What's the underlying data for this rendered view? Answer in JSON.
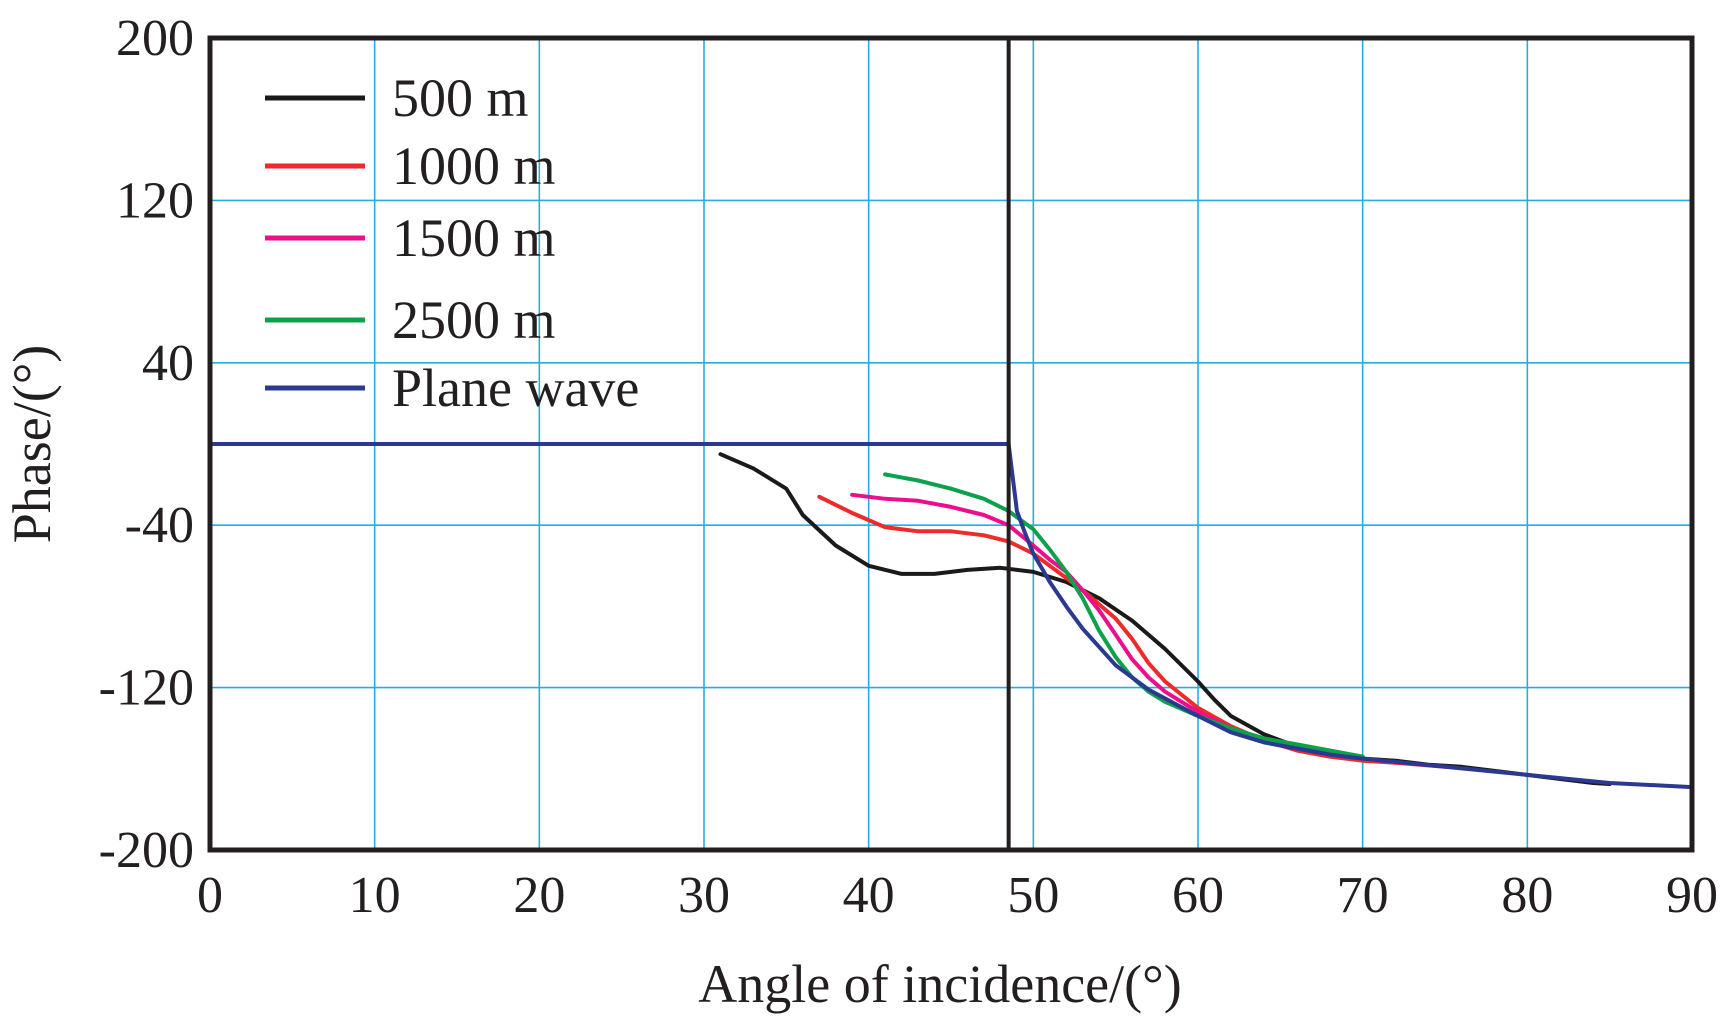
{
  "chart_data": {
    "type": "line",
    "title": "",
    "xlabel": "Angle of incidence/(°)",
    "ylabel": "Phase/(°)",
    "xlim": [
      0,
      90
    ],
    "ylim": [
      -200,
      200
    ],
    "xticks": [
      "0",
      "10",
      "20",
      "30",
      "40",
      "50",
      "60",
      "70",
      "80",
      "90"
    ],
    "yticks": [
      "200",
      "120",
      "40",
      "-40",
      "-120",
      "-200"
    ],
    "xtick_values": [
      0,
      10,
      20,
      30,
      40,
      50,
      60,
      70,
      80,
      90
    ],
    "ytick_values": [
      200,
      120,
      40,
      -40,
      -120,
      -200
    ],
    "grid": true,
    "legend_position": "top-left",
    "critical_angle": 48.5,
    "series": [
      {
        "name": "500 m",
        "color": "#1a1a1a",
        "points": [
          [
            31,
            -5
          ],
          [
            33,
            -12
          ],
          [
            35,
            -22
          ],
          [
            36,
            -35
          ],
          [
            38,
            -50
          ],
          [
            40,
            -60
          ],
          [
            42,
            -64
          ],
          [
            44,
            -64
          ],
          [
            46,
            -62
          ],
          [
            48,
            -61
          ],
          [
            50,
            -63
          ],
          [
            52,
            -68
          ],
          [
            54,
            -76
          ],
          [
            56,
            -87
          ],
          [
            58,
            -101
          ],
          [
            60,
            -117
          ],
          [
            61,
            -126
          ],
          [
            62,
            -134
          ],
          [
            64,
            -143
          ],
          [
            66,
            -149
          ],
          [
            68,
            -152
          ],
          [
            70,
            -155
          ],
          [
            72,
            -156
          ],
          [
            74,
            -158
          ],
          [
            76,
            -159
          ],
          [
            78,
            -161
          ],
          [
            80,
            -163
          ],
          [
            82,
            -165
          ],
          [
            84,
            -167
          ],
          [
            85,
            -167.5
          ]
        ]
      },
      {
        "name": "1000 m",
        "color": "#ee2a2a",
        "points": [
          [
            37,
            -26
          ],
          [
            39,
            -34
          ],
          [
            41,
            -41
          ],
          [
            43,
            -43
          ],
          [
            45,
            -43
          ],
          [
            47,
            -45
          ],
          [
            48.5,
            -48
          ],
          [
            50,
            -54
          ],
          [
            51,
            -60
          ],
          [
            52,
            -66
          ],
          [
            53,
            -72
          ],
          [
            55,
            -86
          ],
          [
            56,
            -96
          ],
          [
            57,
            -108
          ],
          [
            58,
            -117
          ],
          [
            60,
            -130
          ],
          [
            62,
            -139
          ],
          [
            64,
            -146
          ],
          [
            66,
            -151
          ],
          [
            68,
            -154
          ],
          [
            70,
            -156
          ],
          [
            72,
            -157
          ],
          [
            75,
            -159
          ]
        ]
      },
      {
        "name": "1500 m",
        "color": "#ec0e8c",
        "points": [
          [
            39,
            -25
          ],
          [
            41,
            -27
          ],
          [
            43,
            -28
          ],
          [
            45,
            -31
          ],
          [
            47,
            -35
          ],
          [
            48.5,
            -40
          ],
          [
            50,
            -50
          ],
          [
            51,
            -57
          ],
          [
            52,
            -63
          ],
          [
            53,
            -72
          ],
          [
            54,
            -82
          ],
          [
            55,
            -94
          ],
          [
            56,
            -106
          ],
          [
            57,
            -115
          ],
          [
            58,
            -122
          ],
          [
            60,
            -132
          ],
          [
            62,
            -140
          ],
          [
            64,
            -146
          ],
          [
            66,
            -150
          ],
          [
            68,
            -153
          ],
          [
            70,
            -155
          ],
          [
            72,
            -157
          ]
        ]
      },
      {
        "name": "2500 m",
        "color": "#0ea04b",
        "points": [
          [
            41,
            -15
          ],
          [
            43,
            -18
          ],
          [
            45,
            -22
          ],
          [
            47,
            -27
          ],
          [
            48.5,
            -33
          ],
          [
            50,
            -42
          ],
          [
            51,
            -52
          ],
          [
            52,
            -63
          ],
          [
            53,
            -76
          ],
          [
            54,
            -92
          ],
          [
            55,
            -105
          ],
          [
            56,
            -115
          ],
          [
            57,
            -122
          ],
          [
            58,
            -127
          ],
          [
            60,
            -134
          ],
          [
            62,
            -140
          ],
          [
            64,
            -145
          ],
          [
            66,
            -148
          ],
          [
            68,
            -151
          ],
          [
            70,
            -154
          ]
        ]
      },
      {
        "name": "Plane wave",
        "color": "#2b3990",
        "points": [
          [
            0,
            0
          ],
          [
            48.5,
            0
          ],
          [
            49,
            -33
          ],
          [
            49.5,
            -44
          ],
          [
            50,
            -54
          ],
          [
            51,
            -68
          ],
          [
            52,
            -80
          ],
          [
            53,
            -91
          ],
          [
            55,
            -109
          ],
          [
            57,
            -121
          ],
          [
            60,
            -134
          ],
          [
            62,
            -142
          ],
          [
            64,
            -147
          ],
          [
            66,
            -150
          ],
          [
            68,
            -153
          ],
          [
            70,
            -155
          ],
          [
            75,
            -159
          ],
          [
            80,
            -163
          ],
          [
            85,
            -167
          ],
          [
            90,
            -169
          ]
        ]
      }
    ]
  }
}
